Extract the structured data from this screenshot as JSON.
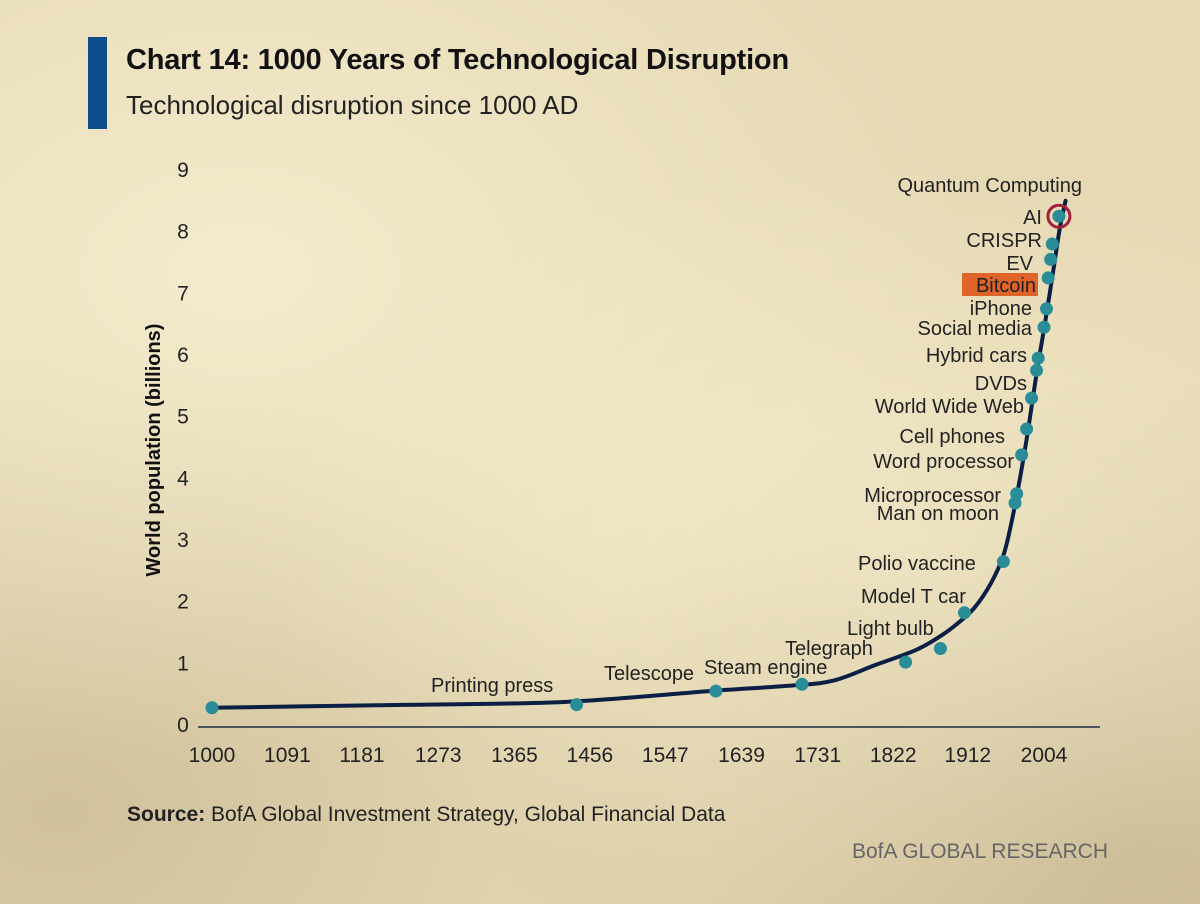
{
  "header": {
    "title": "Chart 14: 1000 Years of Technological Disruption",
    "subtitle": "Technological disruption since 1000 AD"
  },
  "footer": {
    "source_label": "Source:",
    "source_text": "BofA Global Investment Strategy, Global Financial Data",
    "brand": "BofA GLOBAL RESEARCH"
  },
  "colors": {
    "accent": "#0e4d8a",
    "line": "#0b1f44",
    "marker": "#2a8c96",
    "highlight": "#e0632a",
    "circle": "#a3203a"
  },
  "chart_data": {
    "type": "line",
    "title": "Chart 14: 1000 Years of Technological Disruption",
    "subtitle": "Technological disruption since 1000 AD",
    "xlabel": "",
    "ylabel": "World population (billions)",
    "xlim": [
      1000,
      2040
    ],
    "ylim": [
      0,
      9
    ],
    "x_ticks": [
      "1000",
      "1091",
      "1181",
      "1273",
      "1365",
      "1456",
      "1547",
      "1639",
      "1731",
      "1822",
      "1912",
      "2004"
    ],
    "y_ticks": [
      "0",
      "1",
      "2",
      "3",
      "4",
      "5",
      "6",
      "7",
      "8",
      "9"
    ],
    "grid": false,
    "series": [
      {
        "values": [
          {
            "x": 1000,
            "y": 0.28
          },
          {
            "x": 1200,
            "y": 0.32
          },
          {
            "x": 1400,
            "y": 0.36
          },
          {
            "x": 1500,
            "y": 0.44
          },
          {
            "x": 1600,
            "y": 0.55
          },
          {
            "x": 1700,
            "y": 0.64
          },
          {
            "x": 1750,
            "y": 0.72
          },
          {
            "x": 1800,
            "y": 0.97
          },
          {
            "x": 1850,
            "y": 1.22
          },
          {
            "x": 1880,
            "y": 1.45
          },
          {
            "x": 1900,
            "y": 1.65
          },
          {
            "x": 1920,
            "y": 1.9
          },
          {
            "x": 1940,
            "y": 2.3
          },
          {
            "x": 1955,
            "y": 2.75
          },
          {
            "x": 1965,
            "y": 3.3
          },
          {
            "x": 1975,
            "y": 4.0
          },
          {
            "x": 1985,
            "y": 4.8
          },
          {
            "x": 1995,
            "y": 5.7
          },
          {
            "x": 2005,
            "y": 6.5
          },
          {
            "x": 2015,
            "y": 7.35
          },
          {
            "x": 2023,
            "y": 8.05
          },
          {
            "x": 2030,
            "y": 8.5
          }
        ]
      }
    ],
    "events": [
      {
        "label": "Printing press",
        "x": 1440,
        "y": 0.33
      },
      {
        "label": "Telescope",
        "x": 1608,
        "y": 0.55
      },
      {
        "label": "Steam engine",
        "x": 1712,
        "y": 0.66
      },
      {
        "label": "Telegraph",
        "x": 1837,
        "y": 1.02
      },
      {
        "label": "Light bulb",
        "x": 1879,
        "y": 1.24
      },
      {
        "label": "Model T car",
        "x": 1908,
        "y": 1.82
      },
      {
        "label": "Polio vaccine",
        "x": 1955,
        "y": 2.65
      },
      {
        "label": "Man on moon",
        "x": 1969,
        "y": 3.6
      },
      {
        "label": "Microprocessor",
        "x": 1971,
        "y": 3.75
      },
      {
        "label": "Word processor",
        "x": 1977,
        "y": 4.38
      },
      {
        "label": "Cell phones",
        "x": 1983,
        "y": 4.8
      },
      {
        "label": "World Wide Web",
        "x": 1989,
        "y": 5.3
      },
      {
        "label": "DVDs",
        "x": 1995,
        "y": 5.75
      },
      {
        "label": "Hybrid cars",
        "x": 1997,
        "y": 5.95
      },
      {
        "label": "Social media",
        "x": 2004,
        "y": 6.45
      },
      {
        "label": "iPhone",
        "x": 2007,
        "y": 6.75
      },
      {
        "label": "Bitcoin",
        "x": 2009,
        "y": 7.25,
        "highlight": true
      },
      {
        "label": "EV",
        "x": 2012,
        "y": 7.55
      },
      {
        "label": "CRISPR",
        "x": 2014,
        "y": 7.8
      },
      {
        "label": "AI",
        "x": 2022,
        "y": 8.25
      },
      {
        "label": "Quantum Computing",
        "x": 2022,
        "y": 8.25,
        "circled": true
      }
    ]
  }
}
